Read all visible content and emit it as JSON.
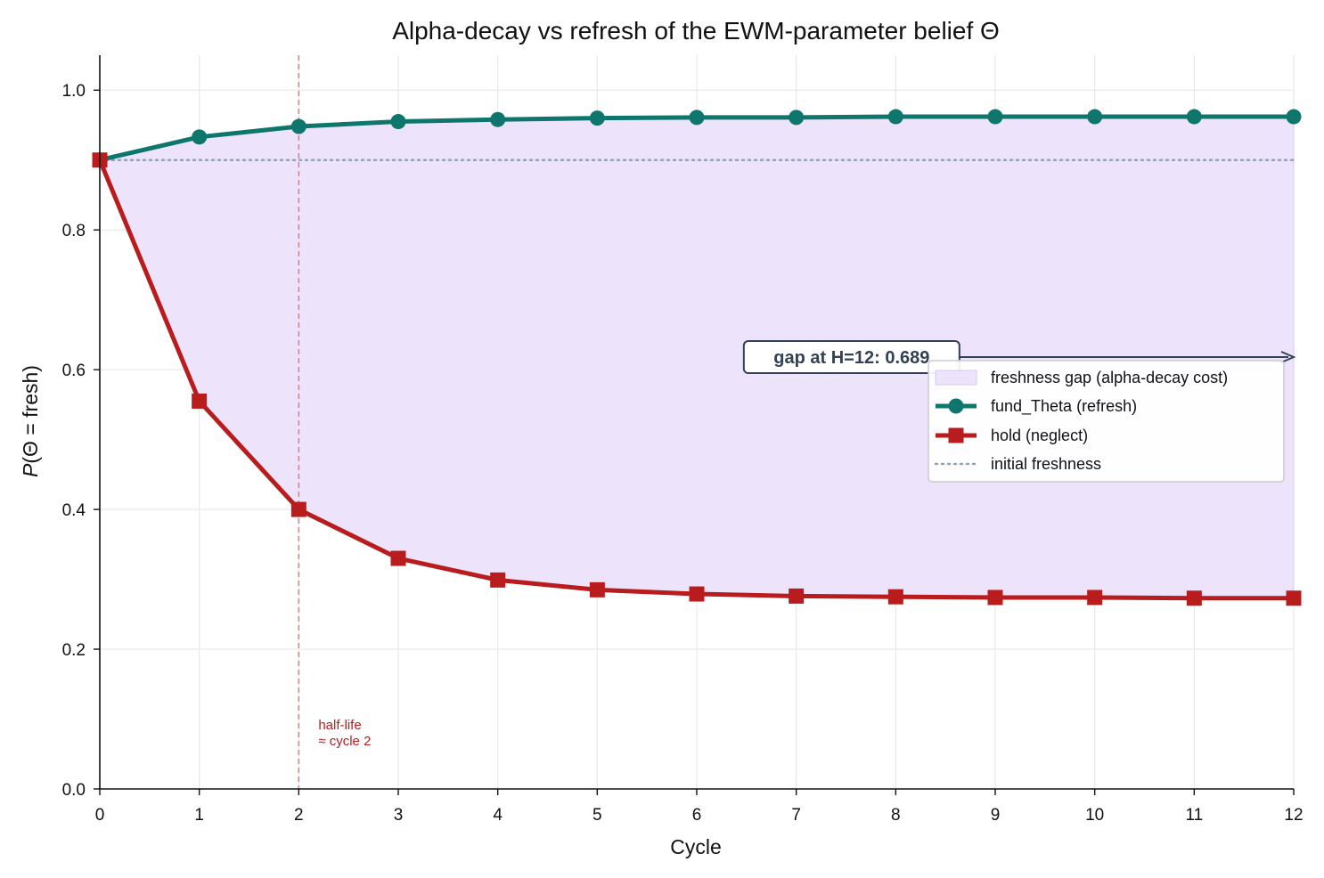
{
  "chart_data": {
    "type": "line",
    "title": "Alpha-decay vs refresh of the EWM-parameter belief Θ",
    "xlabel": "Cycle",
    "ylabel_prefix": "P",
    "ylabel_rest": "(Θ = fresh)",
    "xlim": [
      0,
      12
    ],
    "ylim": [
      0,
      1.05
    ],
    "x": [
      0,
      1,
      2,
      3,
      4,
      5,
      6,
      7,
      8,
      9,
      10,
      11,
      12
    ],
    "x_ticks": [
      0,
      1,
      2,
      3,
      4,
      5,
      6,
      7,
      8,
      9,
      10,
      11,
      12
    ],
    "y_ticks": [
      0.0,
      0.2,
      0.4,
      0.6,
      0.8,
      1.0
    ],
    "y_tick_labels": [
      "0.0",
      "0.2",
      "0.4",
      "0.6",
      "0.8",
      "1.0"
    ],
    "grid": true,
    "series": [
      {
        "name": "fund_Theta (refresh)",
        "marker": "circle",
        "color": "#0f766e",
        "values": [
          0.9,
          0.933,
          0.948,
          0.955,
          0.958,
          0.96,
          0.961,
          0.961,
          0.962,
          0.962,
          0.962,
          0.962,
          0.962
        ]
      },
      {
        "name": "hold (neglect)",
        "marker": "square",
        "color": "#b91c1c",
        "values": [
          0.9,
          0.555,
          0.4,
          0.33,
          0.299,
          0.285,
          0.279,
          0.276,
          0.275,
          0.274,
          0.274,
          0.273,
          0.273
        ]
      }
    ],
    "fill_between": {
      "name": "freshness gap (alpha-decay cost)",
      "color": "#ede4fc",
      "edge_color": "#d8c8f5"
    },
    "reference_line": {
      "name": "initial freshness",
      "y": 0.9,
      "color": "#94a3b8"
    },
    "vertical_line": {
      "x": 2,
      "color": "#e08080",
      "label_line1": "half-life",
      "label_line2": "≈ cycle 2",
      "label_color": "#b91c1c",
      "label_y": 0.07
    },
    "gap_annotation": {
      "text": "gap at H=12: 0.689",
      "arrow_target_x": 12,
      "arrow_target_y": 0.618,
      "box_x": 6.5,
      "color": "#334155"
    },
    "legend": {
      "placement": "center-right",
      "entries": [
        "freshness gap (alpha-decay cost)",
        "fund_Theta (refresh)",
        "hold (neglect)",
        "initial freshness"
      ]
    }
  }
}
